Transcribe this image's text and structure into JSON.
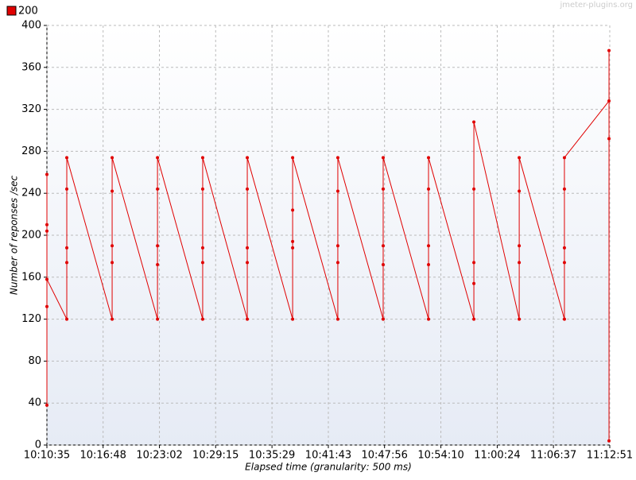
{
  "chart_data": {
    "type": "line",
    "watermark": "jmeter-plugins.org",
    "xlabel": "Elapsed time (granularity: 500 ms)",
    "ylabel": "Number of reponses /sec",
    "legend": "top-left",
    "grid": true,
    "xlim": [
      "10:10:35",
      "11:12:51"
    ],
    "xticks": [
      "10:10:35",
      "10:16:48",
      "10:23:02",
      "10:29:15",
      "10:35:29",
      "10:41:43",
      "10:47:56",
      "10:54:10",
      "11:00:24",
      "11:06:37",
      "11:12:51"
    ],
    "ylim": [
      0,
      400
    ],
    "yticks": [
      0,
      40,
      80,
      120,
      160,
      200,
      240,
      280,
      320,
      360,
      400
    ],
    "series": [
      {
        "name": "200",
        "color": "#e00000",
        "x": [
          "10:10:35",
          "10:10:35",
          "10:10:35",
          "10:10:35",
          "10:10:35",
          "10:10:35",
          "10:12:47",
          "10:12:47",
          "10:12:47",
          "10:12:47",
          "10:12:47",
          "10:17:48",
          "10:17:48",
          "10:17:48",
          "10:17:48",
          "10:17:48",
          "10:22:49",
          "10:22:49",
          "10:22:49",
          "10:22:49",
          "10:22:49",
          "10:27:49",
          "10:27:49",
          "10:27:49",
          "10:27:49",
          "10:27:49",
          "10:32:45",
          "10:32:45",
          "10:32:45",
          "10:32:45",
          "10:32:45",
          "10:37:46",
          "10:37:46",
          "10:37:46",
          "10:37:46",
          "10:37:46",
          "10:42:46",
          "10:42:46",
          "10:42:46",
          "10:42:46",
          "10:42:46",
          "10:47:47",
          "10:47:47",
          "10:47:47",
          "10:47:47",
          "10:47:47",
          "10:52:48",
          "10:52:48",
          "10:52:48",
          "10:52:48",
          "10:52:48",
          "10:57:49",
          "10:57:49",
          "10:57:49",
          "10:57:49",
          "10:57:49",
          "11:02:50",
          "11:02:50",
          "11:02:50",
          "11:02:50",
          "11:02:50",
          "11:07:50",
          "11:07:50",
          "11:07:50",
          "11:07:50",
          "11:07:50",
          "11:12:46",
          "11:12:46",
          "11:12:46",
          "11:12:46"
        ],
        "values": [
          38,
          258,
          210,
          204,
          132,
          158,
          120,
          244,
          174,
          188,
          274,
          120,
          242,
          190,
          174,
          274,
          120,
          244,
          172,
          190,
          274,
          120,
          244,
          174,
          188,
          274,
          120,
          244,
          174,
          188,
          274,
          120,
          224,
          188,
          194,
          274,
          120,
          242,
          174,
          190,
          274,
          120,
          244,
          172,
          190,
          274,
          120,
          244,
          172,
          190,
          274,
          120,
          154,
          174,
          244,
          308,
          120,
          242,
          174,
          190,
          274,
          120,
          174,
          188,
          244,
          274,
          328,
          376,
          292,
          4
        ]
      }
    ]
  }
}
